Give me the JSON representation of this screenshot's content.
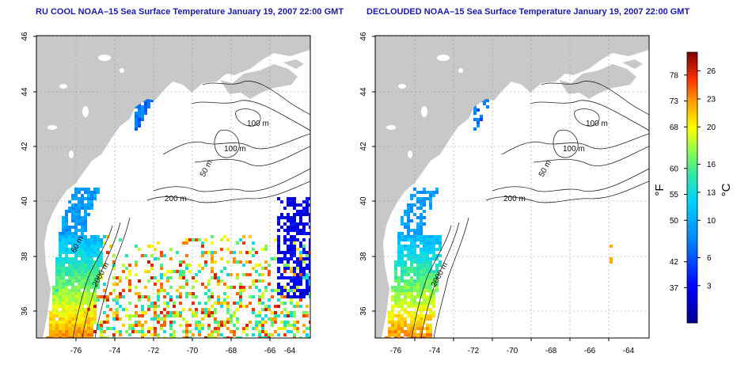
{
  "panels": [
    {
      "title": "RU COOL NOAA–15 Sea Surface Temperature January 19, 2007 22:00 GMT",
      "variant": "raw",
      "x_ticks": [
        "-76",
        "-74",
        "-72",
        "-70",
        "-68",
        "-66",
        "-64"
      ],
      "y_ticks": [
        "36",
        "38",
        "40",
        "42",
        "44",
        "46"
      ],
      "contour_labels": [
        "100 m",
        "100 m",
        "50 m",
        "200 m",
        "60 m",
        "2000 m"
      ]
    },
    {
      "title": "DECLOUDED NOAA–15 Sea Surface Temperature January 19, 2007 22:00 GMT",
      "variant": "declouded",
      "x_ticks": [
        "-76",
        "-74",
        "-72",
        "-70",
        "-68",
        "-66",
        "-64"
      ],
      "y_ticks": [
        "36",
        "38",
        "40",
        "42",
        "44",
        "46"
      ],
      "contour_labels": [
        "100 m",
        "100 m",
        "50 m",
        "200 m",
        "2000 m"
      ]
    }
  ],
  "colorbar": {
    "fahrenheit_label": "°F",
    "celsius_label": "°C",
    "fahrenheit_ticks": [
      "78",
      "73",
      "68",
      "60",
      "55",
      "50",
      "42",
      "37"
    ],
    "celsius_ticks": [
      "26",
      "23",
      "20",
      "16",
      "13",
      "10",
      "6",
      "3"
    ],
    "fahrenheit_values": [
      78,
      73,
      68,
      60,
      55,
      50,
      42,
      37
    ],
    "celsius_values": [
      26,
      23,
      20,
      16,
      13,
      10,
      6,
      3
    ],
    "celsius_range": [
      -1,
      28
    ]
  },
  "colors": {
    "land": "#c8c8c8",
    "ocean_blank": "#ffffff",
    "title": "#1a1aa6",
    "contour": "#222222",
    "grid": "#9a9a9a"
  }
}
